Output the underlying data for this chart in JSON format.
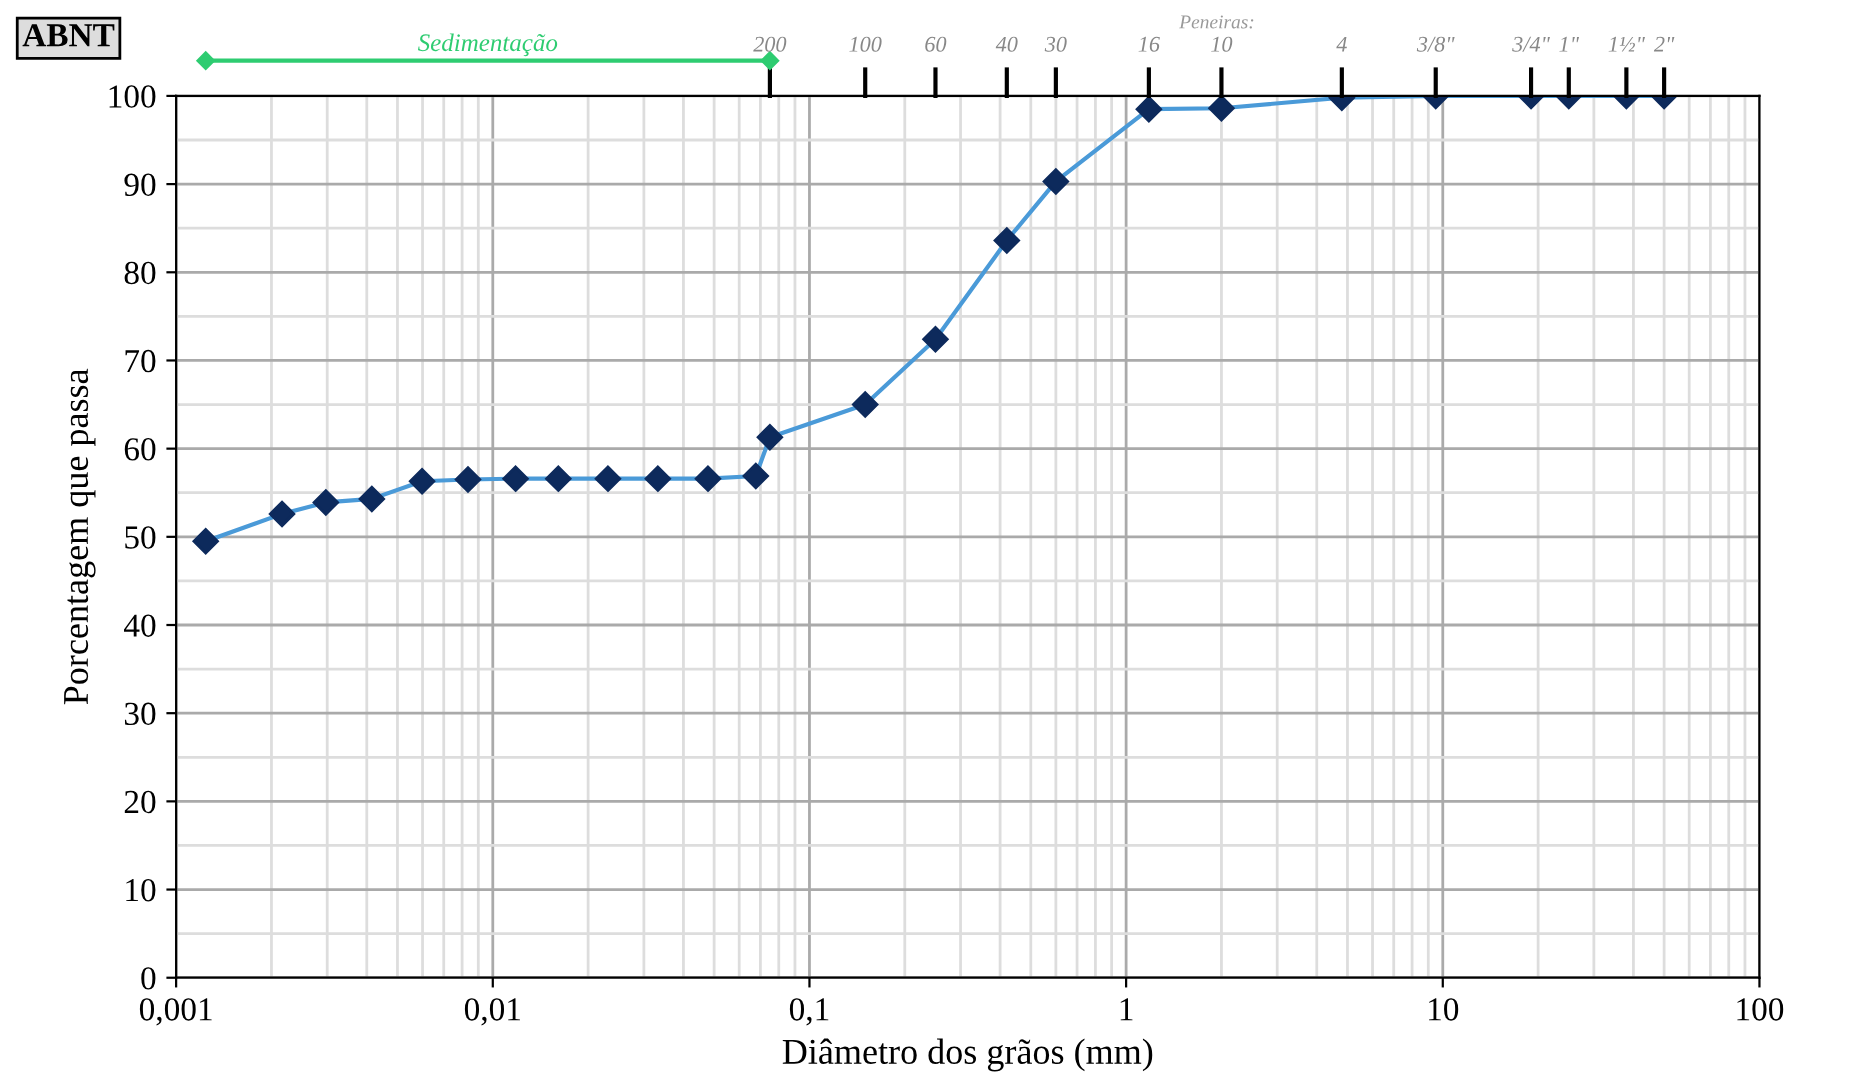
{
  "chart_data": {
    "type": "line",
    "xlabel": "Diâmetro dos grãos (mm)",
    "ylabel": "Porcentagem que passa",
    "annotations": [
      "ABNT",
      "Peneiras:",
      "Sedimentação",
      {
        "text": "200",
        "x": 0.075
      },
      {
        "text": "100",
        "x": 0.15
      },
      {
        "text": "60",
        "x": 0.25
      },
      {
        "text": "40",
        "x": 0.42
      },
      {
        "text": "30",
        "x": 0.6
      },
      {
        "text": "16",
        "x": 1.18
      },
      {
        "text": "10",
        "x": 2.0
      },
      {
        "text": "4",
        "x": 4.8
      },
      {
        "text": "3/8\"",
        "x": 9.5
      },
      {
        "text": "3/4\"",
        "x": 19
      },
      {
        "text": "1\"",
        "x": 25
      },
      {
        "text": "1½\"",
        "x": 38
      },
      {
        "text": "2\"",
        "x": 50
      }
    ],
    "log": "x",
    "x": [
      0.00124,
      0.00216,
      0.00297,
      0.00415,
      0.00598,
      0.00835,
      0.0118,
      0.0161,
      0.0231,
      0.0332,
      0.0478,
      0.0677,
      0.075,
      0.15,
      0.25,
      0.42,
      0.6,
      1.18,
      2.0,
      4.8,
      9.5,
      19,
      25,
      38,
      50
    ],
    "series": [
      {
        "color": "#0d2a5c",
        "values": [
          49.5,
          52.6,
          53.9,
          54.3,
          56.3,
          56.5,
          56.6,
          56.6,
          56.6,
          56.6,
          56.6,
          56.9,
          61.3,
          65,
          72.4,
          83.6,
          90.3,
          98.5,
          98.6,
          99.8,
          100,
          100,
          100,
          100,
          100
        ]
      }
    ],
    "marker": "diamond",
    "line_style": "solid",
    "xlim": [
      0.001,
      100
    ],
    "xticks": [
      {
        "value": 0.001,
        "label": "0,001"
      },
      {
        "value": 0.01,
        "label": "0,01"
      },
      {
        "value": 0.1,
        "label": "0,1"
      },
      1,
      10,
      100
    ],
    "ylim": [
      0,
      100
    ],
    "yticks": [
      0,
      10,
      20,
      30,
      40,
      50,
      60,
      70,
      80,
      90,
      100
    ],
    "grid": true
  }
}
